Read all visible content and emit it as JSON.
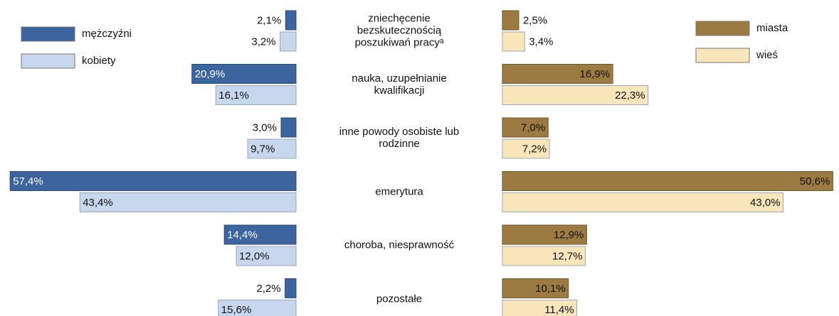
{
  "chart_data": [
    {
      "type": "bar",
      "orientation": "horizontal",
      "inverted": true,
      "legend": "upper left",
      "categories": [
        "zniechęcenie bezskutecznością poszukiwań pracyᵃ",
        "nauka, uzupełnianie kwalifikacji",
        "inne powody osobiste lub rodzinne",
        "emerytura",
        "choroba, niesprawność",
        "pozostałe"
      ],
      "xlim": [
        0,
        58
      ],
      "series": [
        {
          "name": "mężczyźni",
          "color": "#3c65a0",
          "values": [
            2.1,
            20.9,
            3.0,
            57.4,
            14.4,
            2.2
          ],
          "value_labels": [
            "2,1%",
            "20,9%",
            "3,0%",
            "57,4%",
            "14,4%",
            "2,2%"
          ]
        },
        {
          "name": "kobiety",
          "color": "#c6d7ee",
          "values": [
            3.2,
            16.1,
            9.7,
            43.4,
            12.0,
            15.6
          ],
          "value_labels": [
            "3,2%",
            "16,1%",
            "9,7%",
            "43,4%",
            "12,0%",
            "15,6%"
          ]
        }
      ]
    },
    {
      "type": "bar",
      "orientation": "horizontal",
      "inverted": false,
      "legend": "upper right",
      "xlim": [
        0,
        51
      ],
      "series": [
        {
          "name": "miasta",
          "color": "#9c7b42",
          "values": [
            2.5,
            16.9,
            7.0,
            50.6,
            12.9,
            10.1
          ],
          "value_labels": [
            "2,5%",
            "16,9%",
            "7,0%",
            "50,6%",
            "12,9%",
            "10,1%"
          ]
        },
        {
          "name": "wieś",
          "color": "#f8e5ba",
          "values": [
            3.4,
            22.3,
            7.2,
            43.0,
            12.7,
            11.4
          ],
          "value_labels": [
            "3,4%",
            "22,3%",
            "7,2%",
            "43,0%",
            "12,7%",
            "11,4%"
          ]
        }
      ]
    }
  ]
}
